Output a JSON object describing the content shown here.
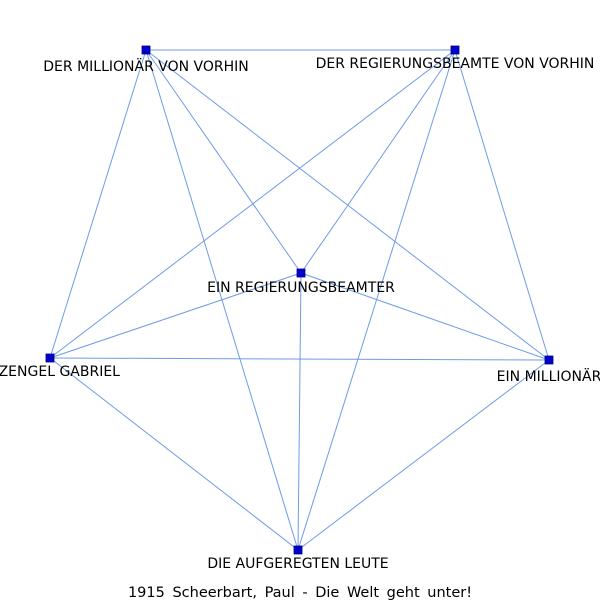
{
  "graph": {
    "caption": "1915 Scheerbart, Paul - Die Welt geht unter!",
    "colors": {
      "edge": "#6f9be6",
      "node": "#0000cc",
      "text": "#000000",
      "background": "#ffffff"
    },
    "nodes": [
      {
        "id": "millionaer_vorhin",
        "label": "DER MILLIONÄR VON VORHIN"
      },
      {
        "id": "beamte_vorhin",
        "label": "DER REGIERUNGSBEAMTE VON VORHIN"
      },
      {
        "id": "regierungsbeamter",
        "label": "EIN REGIERUNGSBEAMTER"
      },
      {
        "id": "erzengel",
        "label": "ERZENGEL GABRIEL"
      },
      {
        "id": "millionaer",
        "label": "EIN MILLIONÄR"
      },
      {
        "id": "leute",
        "label": "DIE AUFGEREGTEN LEUTE"
      }
    ],
    "edges": [
      [
        "millionaer_vorhin",
        "beamte_vorhin"
      ],
      [
        "millionaer_vorhin",
        "regierungsbeamter"
      ],
      [
        "millionaer_vorhin",
        "erzengel"
      ],
      [
        "millionaer_vorhin",
        "millionaer"
      ],
      [
        "millionaer_vorhin",
        "leute"
      ],
      [
        "beamte_vorhin",
        "regierungsbeamter"
      ],
      [
        "beamte_vorhin",
        "erzengel"
      ],
      [
        "beamte_vorhin",
        "millionaer"
      ],
      [
        "beamte_vorhin",
        "leute"
      ],
      [
        "regierungsbeamter",
        "erzengel"
      ],
      [
        "regierungsbeamter",
        "millionaer"
      ],
      [
        "regierungsbeamter",
        "leute"
      ],
      [
        "erzengel",
        "millionaer"
      ],
      [
        "erzengel",
        "leute"
      ],
      [
        "millionaer",
        "leute"
      ]
    ]
  }
}
